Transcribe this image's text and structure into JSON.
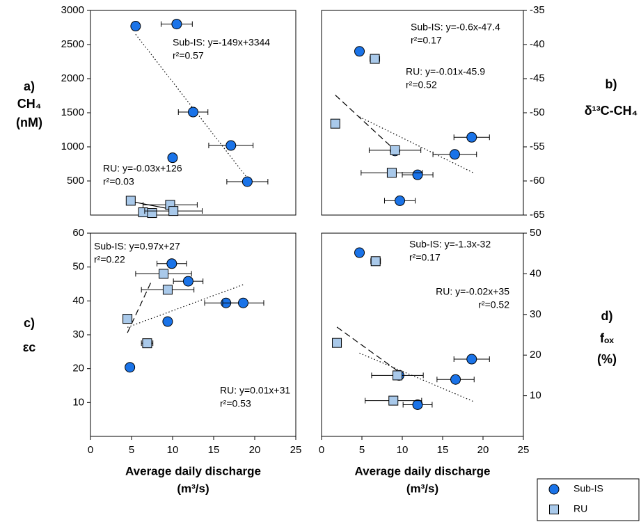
{
  "chart_data": [
    {
      "type": "scatter",
      "ylabel": [
        "a)",
        "CH₄",
        "(nM)"
      ],
      "y_axis": "left",
      "xlim": [
        0,
        25
      ],
      "ylim": [
        0,
        3000
      ],
      "yticks": [
        500,
        1000,
        1500,
        2000,
        2500,
        3000
      ],
      "series": [
        {
          "name": "Sub-IS",
          "color": "#1a73e8",
          "marker": "circle",
          "x": [
            5.5,
            10.5,
            12.5,
            17.1,
            19.1,
            10.0
          ],
          "values": [
            2770,
            2800,
            1510,
            1020,
            490,
            840
          ],
          "xerr": [
            null,
            1.9,
            1.8,
            2.7,
            2.5,
            null
          ]
        },
        {
          "name": "RU",
          "color": "#a9c9ea",
          "marker": "square",
          "x": [
            4.9,
            6.4,
            7.5,
            9.7,
            10.1
          ],
          "values": [
            210,
            40,
            30,
            150,
            60
          ],
          "xerr": [
            null,
            null,
            null,
            3.3,
            3.5
          ]
        }
      ],
      "trendlines": [
        {
          "style": "dotted",
          "x": [
            5.5,
            19.5
          ],
          "values": [
            2650,
            480
          ]
        },
        {
          "style": "solid",
          "x": [
            4.9,
            10.1
          ],
          "values": [
            200,
            80
          ]
        }
      ],
      "annotations": [
        [
          "Sub-IS: y=-149x+3344",
          "r²=0.57"
        ],
        [
          "RU: y=-0.03x+126",
          "r²=0.03"
        ]
      ]
    },
    {
      "type": "scatter",
      "ylabel": [
        "b)",
        "δ¹³C-CH₄"
      ],
      "y_axis": "right",
      "xlim": [
        0,
        25
      ],
      "ylim": [
        -65,
        -35
      ],
      "yticks": [
        -65,
        -60,
        -55,
        -50,
        -45,
        -40,
        -35
      ],
      "series": [
        {
          "name": "Sub-IS",
          "color": "#1a73e8",
          "marker": "circle",
          "x": [
            4.7,
            18.6,
            16.5,
            9.1,
            11.9,
            9.7
          ],
          "values": [
            -41.0,
            -53.6,
            -56.1,
            -55.6,
            -59.1,
            -62.9
          ],
          "xerr": [
            null,
            2.2,
            2.7,
            null,
            1.9,
            1.9
          ]
        },
        {
          "name": "RU",
          "color": "#a9c9ea",
          "marker": "square",
          "x": [
            6.6,
            1.7,
            9.1,
            8.7
          ],
          "values": [
            -42.1,
            -51.6,
            -55.5,
            -58.8
          ],
          "xerr": [
            0.6,
            null,
            3.2,
            3.8
          ]
        }
      ],
      "trendlines": [
        {
          "style": "dashed",
          "x": [
            1.7,
            9.2
          ],
          "values": [
            -47.4,
            -55.6
          ]
        },
        {
          "style": "dotted",
          "x": [
            4.7,
            18.8
          ],
          "values": [
            -50.6,
            -58.8
          ]
        }
      ],
      "annotations": [
        [
          "Sub-IS: y=-0.6x-47.4",
          "r²=0.17"
        ],
        [
          "RU: y=-0.01x-45.9",
          "r²=0.52"
        ]
      ]
    },
    {
      "type": "scatter",
      "ylabel": [
        "c)",
        "εc"
      ],
      "y_axis": "left",
      "xlim": [
        0,
        25
      ],
      "ylim": [
        0,
        60
      ],
      "yticks": [
        10,
        20,
        30,
        40,
        50,
        60
      ],
      "xticks": [
        0,
        5,
        10,
        15,
        20,
        25
      ],
      "xlabel": [
        "Average daily discharge",
        "(m³/s)"
      ],
      "series": [
        {
          "name": "Sub-IS",
          "color": "#1a73e8",
          "marker": "circle",
          "x": [
            4.8,
            9.9,
            11.9,
            9.4,
            16.5,
            18.6
          ],
          "values": [
            20.4,
            51.0,
            45.8,
            33.9,
            39.4,
            39.4
          ],
          "xerr": [
            null,
            1.8,
            1.8,
            null,
            2.6,
            2.5
          ]
        },
        {
          "name": "RU",
          "color": "#a9c9ea",
          "marker": "square",
          "x": [
            4.5,
            6.9,
            8.9,
            9.4
          ],
          "values": [
            34.7,
            27.5,
            48.0,
            43.3
          ],
          "xerr": [
            null,
            0.7,
            3.4,
            3.2
          ]
        }
      ],
      "trendlines": [
        {
          "style": "dashed",
          "x": [
            4.5,
            7.5
          ],
          "values": [
            30.6,
            46.2
          ]
        },
        {
          "style": "dotted",
          "x": [
            4.5,
            18.6
          ],
          "values": [
            32.2,
            44.8
          ]
        }
      ],
      "annotations": [
        [
          "Sub-IS: y=0.97x+27",
          "r²=0.22"
        ],
        [
          "RU: y=0.01x+31",
          "r²=0.53"
        ]
      ]
    },
    {
      "type": "scatter",
      "ylabel": [
        "d)",
        "fₒₓ",
        "(%)"
      ],
      "y_axis": "right",
      "xlim": [
        0,
        25
      ],
      "ylim": [
        0,
        50
      ],
      "yticks": [
        10,
        20,
        30,
        40,
        50
      ],
      "xticks": [
        0,
        5,
        10,
        15,
        20,
        25
      ],
      "xlabel": [
        "Average daily discharge",
        "(m³/s)"
      ],
      "series": [
        {
          "name": "Sub-IS",
          "color": "#1a73e8",
          "marker": "circle",
          "x": [
            4.7,
            18.6,
            16.6,
            9.6,
            11.9
          ],
          "values": [
            45.2,
            19.0,
            14.0,
            15.0,
            7.8
          ],
          "xerr": [
            null,
            2.2,
            2.3,
            null,
            1.8
          ]
        },
        {
          "name": "RU",
          "color": "#a9c9ea",
          "marker": "square",
          "x": [
            6.7,
            1.9,
            9.4,
            8.9
          ],
          "values": [
            43.1,
            23.0,
            15.0,
            8.8
          ],
          "xerr": [
            0.6,
            null,
            3.2,
            3.5
          ]
        }
      ],
      "trendlines": [
        {
          "style": "dashed",
          "x": [
            1.9,
            9.5
          ],
          "values": [
            26.9,
            16.0
          ]
        },
        {
          "style": "dotted",
          "x": [
            4.7,
            18.8
          ],
          "values": [
            20.5,
            8.6
          ]
        }
      ],
      "annotations": [
        [
          "Sub-IS: y=-1.3x-32",
          "r²=0.17"
        ],
        [
          "RU: y=-0.02x+35",
          "r²=0.52"
        ]
      ]
    }
  ]
}
